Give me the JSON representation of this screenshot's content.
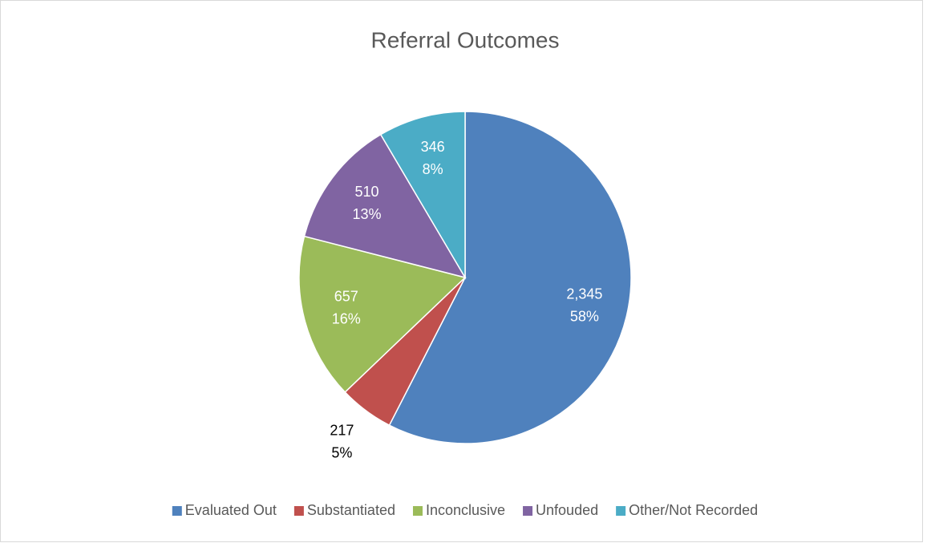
{
  "chart_data": {
    "type": "pie",
    "title": "Referral Outcomes",
    "categories": [
      "Evaluated Out",
      "Substantiated",
      "Inconclusive",
      "Unfouded",
      "Other/Not Recorded"
    ],
    "values": [
      2345,
      217,
      657,
      510,
      346
    ],
    "value_labels": [
      "2,345",
      "217",
      "657",
      "510",
      "346"
    ],
    "percent_labels": [
      "58%",
      "5%",
      "16%",
      "13%",
      "8%"
    ],
    "colors": [
      "#4f81bd",
      "#c0504d",
      "#9bbb59",
      "#8064a2",
      "#4bacc6"
    ],
    "legend": "bottom"
  }
}
